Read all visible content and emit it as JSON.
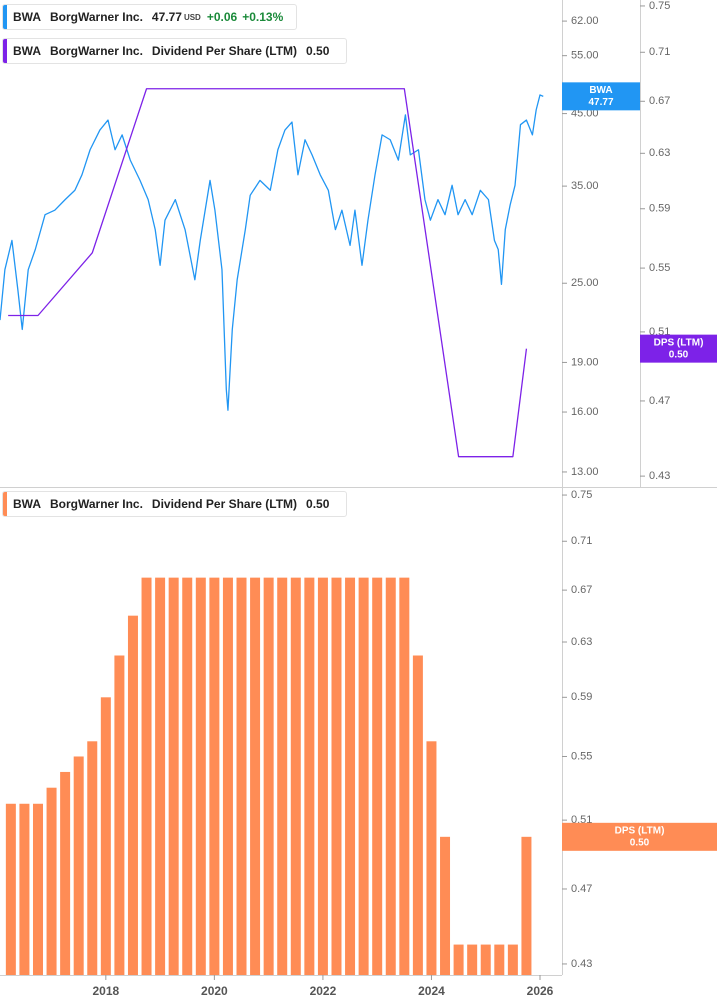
{
  "chart_data": [
    {
      "type": "line",
      "xlim": [
        2016.05,
        2026.35
      ],
      "ylim": [
        12.34,
        66.7
      ],
      "log_y": true,
      "yticks": [
        {
          "value": 62,
          "label": "62.00"
        },
        {
          "value": 55,
          "label": "55.00"
        },
        {
          "value": 45,
          "label": "45.00"
        },
        {
          "value": 35,
          "label": "35.00"
        },
        {
          "value": 25,
          "label": "25.00"
        },
        {
          "value": 19,
          "label": "19.00"
        },
        {
          "value": 16,
          "label": "16.00"
        },
        {
          "value": 13,
          "label": "13.00"
        }
      ],
      "y2lim": [
        0.4245,
        0.7553
      ],
      "log_y2": true,
      "y2ticks": [
        0.75,
        0.71,
        0.67,
        0.63,
        0.59,
        0.55,
        0.51,
        0.47,
        0.43
      ],
      "series": [
        {
          "name": "BorgWarner Inc.",
          "ticker": "BWA",
          "color": "#2196f3",
          "axis": "y",
          "currency": "USD",
          "change": "+0.06",
          "change_pct": "+0.13%",
          "x": [
            2016.05,
            2016.14,
            2016.27,
            2016.38,
            2016.46,
            2016.57,
            2016.7,
            2016.88,
            2017.06,
            2017.25,
            2017.43,
            2017.56,
            2017.71,
            2017.89,
            2018.04,
            2018.17,
            2018.3,
            2018.45,
            2018.63,
            2018.78,
            2018.91,
            2019.0,
            2019.09,
            2019.28,
            2019.46,
            2019.64,
            2019.74,
            2019.92,
            2020.01,
            2020.14,
            2020.22,
            2020.25,
            2020.33,
            2020.42,
            2020.57,
            2020.66,
            2020.84,
            2021.03,
            2021.17,
            2021.3,
            2021.43,
            2021.54,
            2021.67,
            2021.8,
            2021.95,
            2022.1,
            2022.23,
            2022.35,
            2022.5,
            2022.59,
            2022.72,
            2022.83,
            2022.96,
            2023.09,
            2023.24,
            2023.39,
            2023.52,
            2023.61,
            2023.76,
            2023.88,
            2023.98,
            2024.12,
            2024.25,
            2024.38,
            2024.49,
            2024.62,
            2024.75,
            2024.9,
            2025.05,
            2025.16,
            2025.23,
            2025.29,
            2025.36,
            2025.45,
            2025.54,
            2025.64,
            2025.75,
            2025.86,
            2025.93,
            2026.0,
            2026.06
          ],
          "values": [
            22.0,
            26.2,
            29.0,
            24.4,
            21.3,
            26.2,
            28.1,
            31.7,
            32.2,
            33.4,
            34.5,
            36.4,
            39.7,
            42.5,
            44.0,
            39.7,
            41.8,
            38.3,
            35.7,
            33.4,
            30.1,
            26.6,
            31.1,
            33.4,
            30.1,
            25.3,
            29.0,
            35.7,
            32.2,
            26.2,
            17.3,
            16.1,
            21.3,
            25.3,
            30.1,
            33.9,
            35.7,
            34.5,
            39.7,
            42.5,
            43.7,
            36.4,
            41.1,
            39.0,
            36.4,
            34.5,
            30.1,
            32.2,
            28.5,
            32.2,
            26.6,
            31.1,
            36.4,
            41.8,
            41.1,
            38.3,
            44.8,
            39.0,
            39.7,
            33.4,
            31.1,
            33.4,
            31.7,
            35.1,
            31.7,
            33.4,
            31.7,
            34.5,
            33.4,
            29.0,
            28.1,
            24.9,
            30.1,
            32.8,
            35.1,
            43.3,
            44.0,
            41.8,
            45.6,
            48.0,
            47.77
          ]
        },
        {
          "name": "Dividend Per Share (LTM)",
          "company": "BorgWarner Inc.",
          "ticker": "BWA",
          "short_name": "DPS (LTM)",
          "color": "#7d22e8",
          "axis": "y2",
          "last_label": "0.50",
          "x": [
            2016.2,
            2016.75,
            2017.75,
            2018.75,
            2023.5,
            2024.5,
            2025.5,
            2025.75
          ],
          "values": [
            0.52,
            0.52,
            0.56,
            0.68,
            0.68,
            0.44,
            0.44,
            0.5
          ]
        }
      ]
    },
    {
      "type": "bar",
      "xlim": [
        2016.05,
        2026.35
      ],
      "xticks": [
        2018,
        2020,
        2022,
        2024,
        2026
      ],
      "ylim": [
        0.4244,
        0.7563
      ],
      "log_y": true,
      "yticks": [
        0.75,
        0.71,
        0.67,
        0.63,
        0.59,
        0.55,
        0.51,
        0.47,
        0.43
      ],
      "series": [
        {
          "name": "Dividend Per Share (LTM)",
          "company": "BorgWarner Inc.",
          "ticker": "BWA",
          "short_name": "DPS (LTM)",
          "color": "#ff8c55",
          "axis": "y",
          "last_label": "0.50",
          "x": [
            2016.25,
            2016.5,
            2016.75,
            2017.0,
            2017.25,
            2017.5,
            2017.75,
            2018.0,
            2018.25,
            2018.5,
            2018.75,
            2019.0,
            2019.25,
            2019.5,
            2019.75,
            2020.0,
            2020.25,
            2020.5,
            2020.75,
            2021.0,
            2021.25,
            2021.5,
            2021.75,
            2022.0,
            2022.25,
            2022.5,
            2022.75,
            2023.0,
            2023.25,
            2023.5,
            2023.75,
            2024.0,
            2024.25,
            2024.5,
            2024.75,
            2025.0,
            2025.25,
            2025.5,
            2025.75
          ],
          "values": [
            0.52,
            0.52,
            0.52,
            0.53,
            0.54,
            0.55,
            0.56,
            0.59,
            0.62,
            0.65,
            0.68,
            0.68,
            0.68,
            0.68,
            0.68,
            0.68,
            0.68,
            0.68,
            0.68,
            0.68,
            0.68,
            0.68,
            0.68,
            0.68,
            0.68,
            0.68,
            0.68,
            0.68,
            0.68,
            0.68,
            0.62,
            0.56,
            0.5,
            0.44,
            0.44,
            0.44,
            0.44,
            0.44,
            0.5
          ]
        }
      ]
    }
  ]
}
